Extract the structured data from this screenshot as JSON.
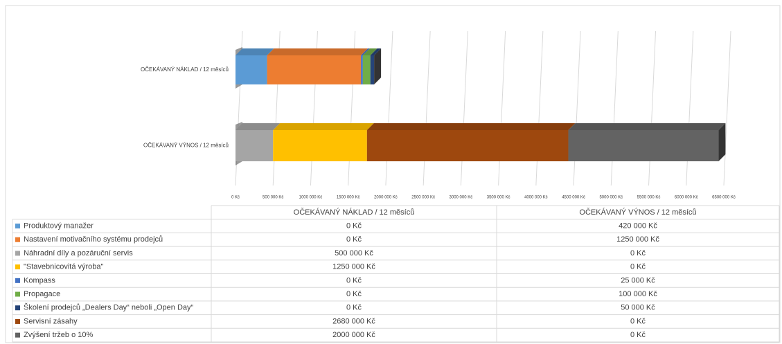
{
  "chart_data": {
    "type": "stacked-bar-3d",
    "categories": [
      "OČEKÁVANÝ VÝNOS / 12 měsíců",
      "OČEKÁVANÝ NÁKLAD / 12 měsíců"
    ],
    "series": [
      {
        "name": "Produktový manažer",
        "color": "#5b9bd5",
        "values": [
          0,
          420000
        ],
        "value_labels": [
          "0 Kč",
          "420 000 Kč"
        ]
      },
      {
        "name": "Nastavení motivačního systému prodejců",
        "color": "#ed7d31",
        "values": [
          0,
          1250000
        ],
        "value_labels": [
          "0 Kč",
          "1250 000 Kč"
        ]
      },
      {
        "name": "Náhradní díly a pozáruční servis",
        "color": "#a5a5a5",
        "values": [
          500000,
          0
        ],
        "value_labels": [
          "500 000 Kč",
          "0 Kč"
        ]
      },
      {
        "name": "\"Stavebnicovitá výroba\"",
        "color": "#ffc000",
        "values": [
          1250000,
          0
        ],
        "value_labels": [
          "1250 000 Kč",
          "0 Kč"
        ]
      },
      {
        "name": "Kompass",
        "color": "#4472c4",
        "values": [
          0,
          25000
        ],
        "value_labels": [
          "0 Kč",
          "25 000 Kč"
        ]
      },
      {
        "name": "Propagace",
        "color": "#70ad47",
        "values": [
          0,
          100000
        ],
        "value_labels": [
          "0 Kč",
          "100 000 Kč"
        ]
      },
      {
        "name": "Školení prodejců „Dealers Day“ neboli „Open Day“",
        "color": "#264478",
        "values": [
          0,
          50000
        ],
        "value_labels": [
          "0 Kč",
          "50 000 Kč"
        ]
      },
      {
        "name": "Servisní zásahy",
        "color": "#9e480e",
        "values": [
          2680000,
          0
        ],
        "value_labels": [
          "2680 000 Kč",
          "0 Kč"
        ]
      },
      {
        "name": "Zvýšení tržeb o 10%",
        "color": "#636363",
        "values": [
          2000000,
          0
        ],
        "value_labels": [
          "2000 000 Kč",
          "0 Kč"
        ]
      }
    ],
    "xlim": [
      0,
      6500000
    ],
    "xticks": [
      {
        "value": 0,
        "label": "0 Kč"
      },
      {
        "value": 500000,
        "label": "500 000 Kč"
      },
      {
        "value": 1000000,
        "label": "1000 000 Kč"
      },
      {
        "value": 1500000,
        "label": "1500 000 Kč"
      },
      {
        "value": 2000000,
        "label": "2000 000 Kč"
      },
      {
        "value": 2500000,
        "label": "2500 000 Kč"
      },
      {
        "value": 3000000,
        "label": "3000 000 Kč"
      },
      {
        "value": 3500000,
        "label": "3500 000 Kč"
      },
      {
        "value": 4000000,
        "label": "4000 000 Kč"
      },
      {
        "value": 4500000,
        "label": "4500 000 Kč"
      },
      {
        "value": 5000000,
        "label": "5000 000 Kč"
      },
      {
        "value": 5500000,
        "label": "5500 000 Kč"
      },
      {
        "value": 6000000,
        "label": "6000 000 Kč"
      },
      {
        "value": 6500000,
        "label": "6500 000 Kč"
      }
    ],
    "grid": true
  }
}
